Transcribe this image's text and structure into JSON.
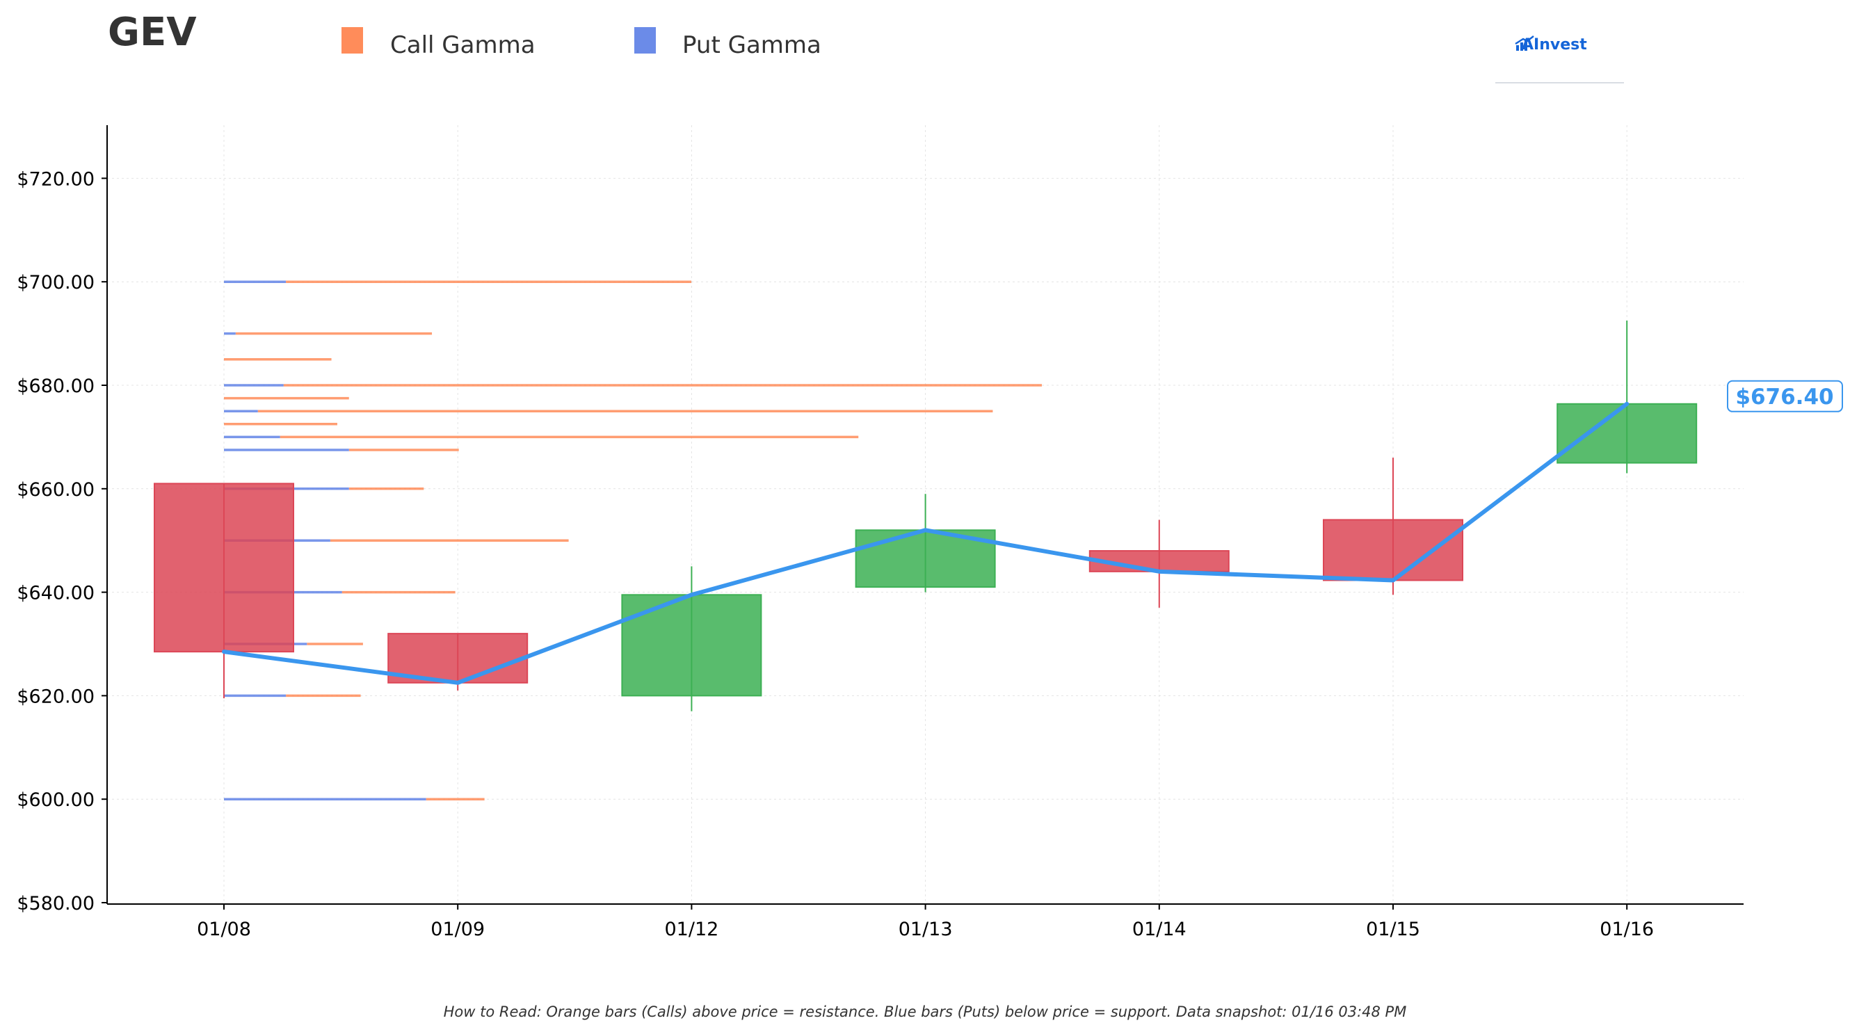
{
  "header": {
    "ticker": "GEV",
    "logo_text": "AInvest"
  },
  "legend": {
    "call_label": "Call Gamma",
    "put_label": "Put Gamma"
  },
  "footer": {
    "text": "How to Read: Orange bars (Calls) above price = resistance. Blue bars (Puts) below price = support. Data snapshot: 01/16 03:48 PM"
  },
  "colors": {
    "call": "#ff8c5a",
    "put": "#6b8be8",
    "up_candle": "#3cb054",
    "down_candle": "#dc4656",
    "price_line": "#3a96ee",
    "axis": "#000000",
    "grid": "#e4e4e4"
  },
  "chart_data": {
    "type": "candlestick",
    "categories": [
      "01/08",
      "01/09",
      "01/12",
      "01/13",
      "01/14",
      "01/15",
      "01/16"
    ],
    "ylim": [
      580,
      730
    ],
    "yticks": [
      580,
      600,
      620,
      640,
      660,
      680,
      700,
      720
    ],
    "ytick_labels": [
      "$580.00",
      "$600.00",
      "$620.00",
      "$640.00",
      "$660.00",
      "$680.00",
      "$700.00",
      "$720.00"
    ],
    "grid": true,
    "candles": [
      {
        "date": "01/08",
        "open": 661.0,
        "high": 661.0,
        "low": 619.5,
        "close": 628.5
      },
      {
        "date": "01/09",
        "open": 632.0,
        "high": 632.0,
        "low": 621.0,
        "close": 622.5
      },
      {
        "date": "01/12",
        "open": 620.0,
        "high": 645.0,
        "low": 617.0,
        "close": 639.5
      },
      {
        "date": "01/13",
        "open": 641.0,
        "high": 659.0,
        "low": 640.0,
        "close": 652.0
      },
      {
        "date": "01/14",
        "open": 648.0,
        "high": 654.0,
        "low": 637.0,
        "close": 644.0
      },
      {
        "date": "01/15",
        "open": 654.0,
        "high": 666.0,
        "low": 639.5,
        "close": 642.3
      },
      {
        "date": "01/16",
        "open": 665.0,
        "high": 692.5,
        "low": 663.0,
        "close": 676.4
      }
    ],
    "price_line": {
      "name": "Close",
      "values": [
        628.5,
        622.5,
        639.5,
        652.0,
        644.0,
        642.3,
        676.4
      ]
    },
    "last_price_label": "$676.40",
    "gamma_bars": [
      {
        "strike": 700.0,
        "put": 0.53,
        "call": 3.47
      },
      {
        "strike": 690.0,
        "put": 0.1,
        "call": 1.68
      },
      {
        "strike": 685.0,
        "put": 0.0,
        "call": 0.92
      },
      {
        "strike": 680.0,
        "put": 0.51,
        "call": 6.49
      },
      {
        "strike": 677.5,
        "put": 0.0,
        "call": 1.07
      },
      {
        "strike": 675.0,
        "put": 0.29,
        "call": 6.29
      },
      {
        "strike": 672.5,
        "put": 0.0,
        "call": 0.97
      },
      {
        "strike": 670.0,
        "put": 0.48,
        "call": 4.95
      },
      {
        "strike": 667.5,
        "put": 1.07,
        "call": 0.94
      },
      {
        "strike": 660.0,
        "put": 1.07,
        "call": 0.64
      },
      {
        "strike": 650.0,
        "put": 0.91,
        "call": 2.04
      },
      {
        "strike": 640.0,
        "put": 1.01,
        "call": 0.97
      },
      {
        "strike": 630.0,
        "put": 0.71,
        "call": 0.48
      },
      {
        "strike": 620.0,
        "put": 0.53,
        "call": 0.64
      },
      {
        "strike": 600.0,
        "put": 1.73,
        "call": 0.5
      }
    ]
  }
}
